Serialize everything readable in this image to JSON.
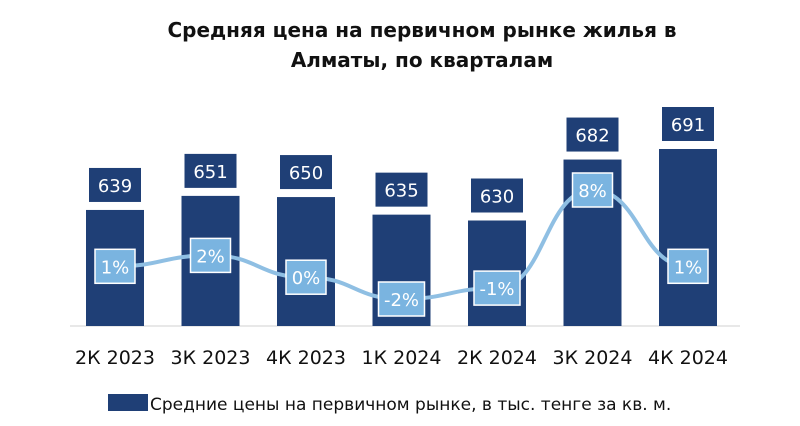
{
  "chart_data": {
    "type": "bar",
    "title": "Средняя цена на первичном рынке жилья в Алматы, по кварталам",
    "title_lines": [
      "Средняя цена на первичном рынке жилья в",
      "Алматы, по кварталам"
    ],
    "categories": [
      "2К 2023",
      "3К 2023",
      "4К 2023",
      "1К 2024",
      "2К 2024",
      "3К 2024",
      "4К 2024"
    ],
    "series": [
      {
        "name": "Средние цены на первичном рынке, в тыс. тенге за кв. м.",
        "values": [
          639,
          651,
          650,
          635,
          630,
          682,
          691
        ]
      }
    ],
    "growth_labels": [
      "1%",
      "2%",
      "0%",
      "-2%",
      "-1%",
      "8%",
      "1%"
    ],
    "growth_values": [
      1,
      2,
      0,
      -2,
      -1,
      8,
      1
    ],
    "legend_position": "bottom",
    "grid": false,
    "colors": {
      "bar": "#1f3f76",
      "line": "#8fbfe3",
      "label_box": "#1f3f76",
      "pct_box": "#7ab4e0"
    }
  }
}
